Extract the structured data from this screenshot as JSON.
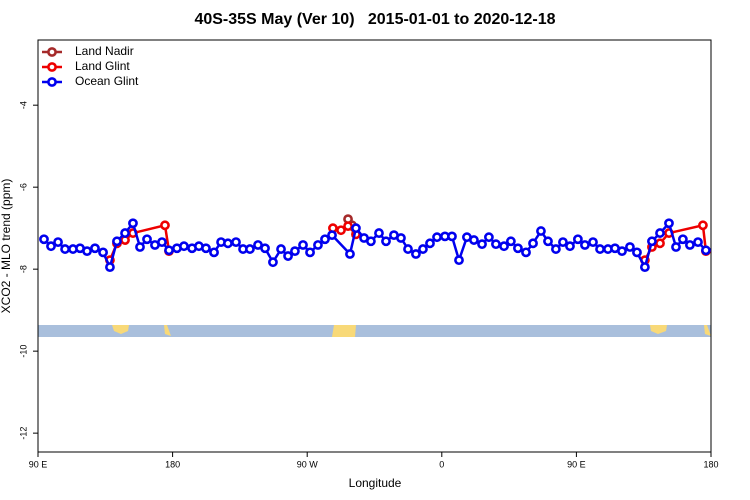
{
  "chart_data": {
    "type": "line",
    "title": "40S-35S May (Ver 10)   2015-01-01 to 2020-12-18",
    "x_label": "Longitude",
    "y_label": "XCO2 - MLO trend (ppm)",
    "xlim": [
      90,
      540
    ],
    "xticks": [
      {
        "value": 90,
        "label": "90 E"
      },
      {
        "value": 180,
        "label": "180"
      },
      {
        "value": 270,
        "label": "90 W"
      },
      {
        "value": 360,
        "label": "0"
      },
      {
        "value": 450,
        "label": "90 E"
      },
      {
        "value": 540,
        "label": "180"
      }
    ],
    "ylim": [
      -12.46,
      -2.41
    ],
    "yticks": [
      -12,
      -10,
      -8,
      -6,
      -4
    ],
    "legend": "top-left",
    "series": [
      {
        "name": "Land Nadir",
        "color": "#a52a2a",
        "x": [
          297.3,
          300.0
        ],
        "values": [
          -6.78,
          -6.93
        ]
      },
      {
        "name": "Land Glint",
        "color": "#ee0000",
        "x": [
          138.1,
          142.8,
          148.2,
          153.5,
          174.9,
          177.6,
          null,
          287.2,
          292.6,
          297.3,
          302.6,
          null,
          495.8,
          500.5,
          505.9,
          511.9,
          534.6,
          536.6
        ],
        "values": [
          -7.78,
          -7.37,
          -7.29,
          -7.12,
          -6.93,
          -7.56,
          null,
          -7.0,
          -7.05,
          -6.95,
          -7.15,
          null,
          -7.78,
          -7.46,
          -7.37,
          -7.12,
          -6.93,
          -7.56
        ]
      },
      {
        "name": "Ocean Glint",
        "color": "#0000ee",
        "x": [
          94.0,
          98.7,
          103.4,
          108.1,
          113.4,
          118.1,
          122.8,
          128.1,
          133.5,
          138.1,
          142.8,
          148.2,
          153.5,
          158.2,
          162.9,
          168.2,
          172.9,
          177.6,
          182.9,
          187.6,
          193.0,
          197.6,
          202.3,
          207.7,
          212.4,
          217.0,
          222.4,
          227.1,
          231.7,
          237.1,
          241.8,
          247.1,
          252.5,
          257.2,
          261.8,
          267.2,
          271.9,
          277.2,
          281.9,
          286.6,
          298.6,
          302.6,
          308.0,
          312.6,
          318.0,
          322.7,
          328.0,
          332.7,
          337.4,
          342.7,
          347.4,
          352.1,
          356.8,
          362.1,
          366.8,
          371.5,
          376.8,
          381.5,
          386.9,
          391.5,
          396.2,
          401.6,
          406.2,
          410.9,
          416.3,
          421.0,
          426.3,
          431.0,
          436.3,
          441.0,
          445.7,
          451.0,
          455.7,
          461.1,
          465.8,
          471.1,
          475.8,
          480.5,
          485.8,
          490.5,
          495.8,
          500.5,
          505.9,
          511.9,
          516.6,
          521.2,
          525.9,
          531.3,
          536.6
        ],
        "values": [
          -7.27,
          -7.44,
          -7.34,
          -7.51,
          -7.51,
          -7.49,
          -7.56,
          -7.49,
          -7.59,
          -7.95,
          -7.32,
          -7.12,
          -6.88,
          -7.46,
          -7.27,
          -7.41,
          -7.34,
          -7.54,
          -7.49,
          -7.44,
          -7.49,
          -7.44,
          -7.49,
          -7.59,
          -7.34,
          -7.37,
          -7.34,
          -7.51,
          -7.51,
          -7.41,
          -7.49,
          -7.83,
          -7.51,
          -7.68,
          -7.56,
          -7.41,
          -7.59,
          -7.41,
          -7.27,
          -7.17,
          -7.63,
          -7.0,
          -7.24,
          -7.32,
          -7.12,
          -7.32,
          -7.17,
          -7.24,
          -7.51,
          -7.63,
          -7.51,
          -7.37,
          -7.22,
          -7.2,
          -7.2,
          -7.78,
          -7.22,
          -7.29,
          -7.39,
          -7.22,
          -7.39,
          -7.44,
          -7.32,
          -7.49,
          -7.59,
          -7.37,
          -7.07,
          -7.32,
          -7.51,
          -7.34,
          -7.44,
          -7.27,
          -7.41,
          -7.34,
          -7.51,
          -7.51,
          -7.49,
          -7.56,
          -7.46,
          -7.59,
          -7.95,
          -7.32,
          -7.12,
          -6.88,
          -7.46,
          -7.27,
          -7.41,
          -7.34,
          -7.54
        ]
      }
    ]
  }
}
